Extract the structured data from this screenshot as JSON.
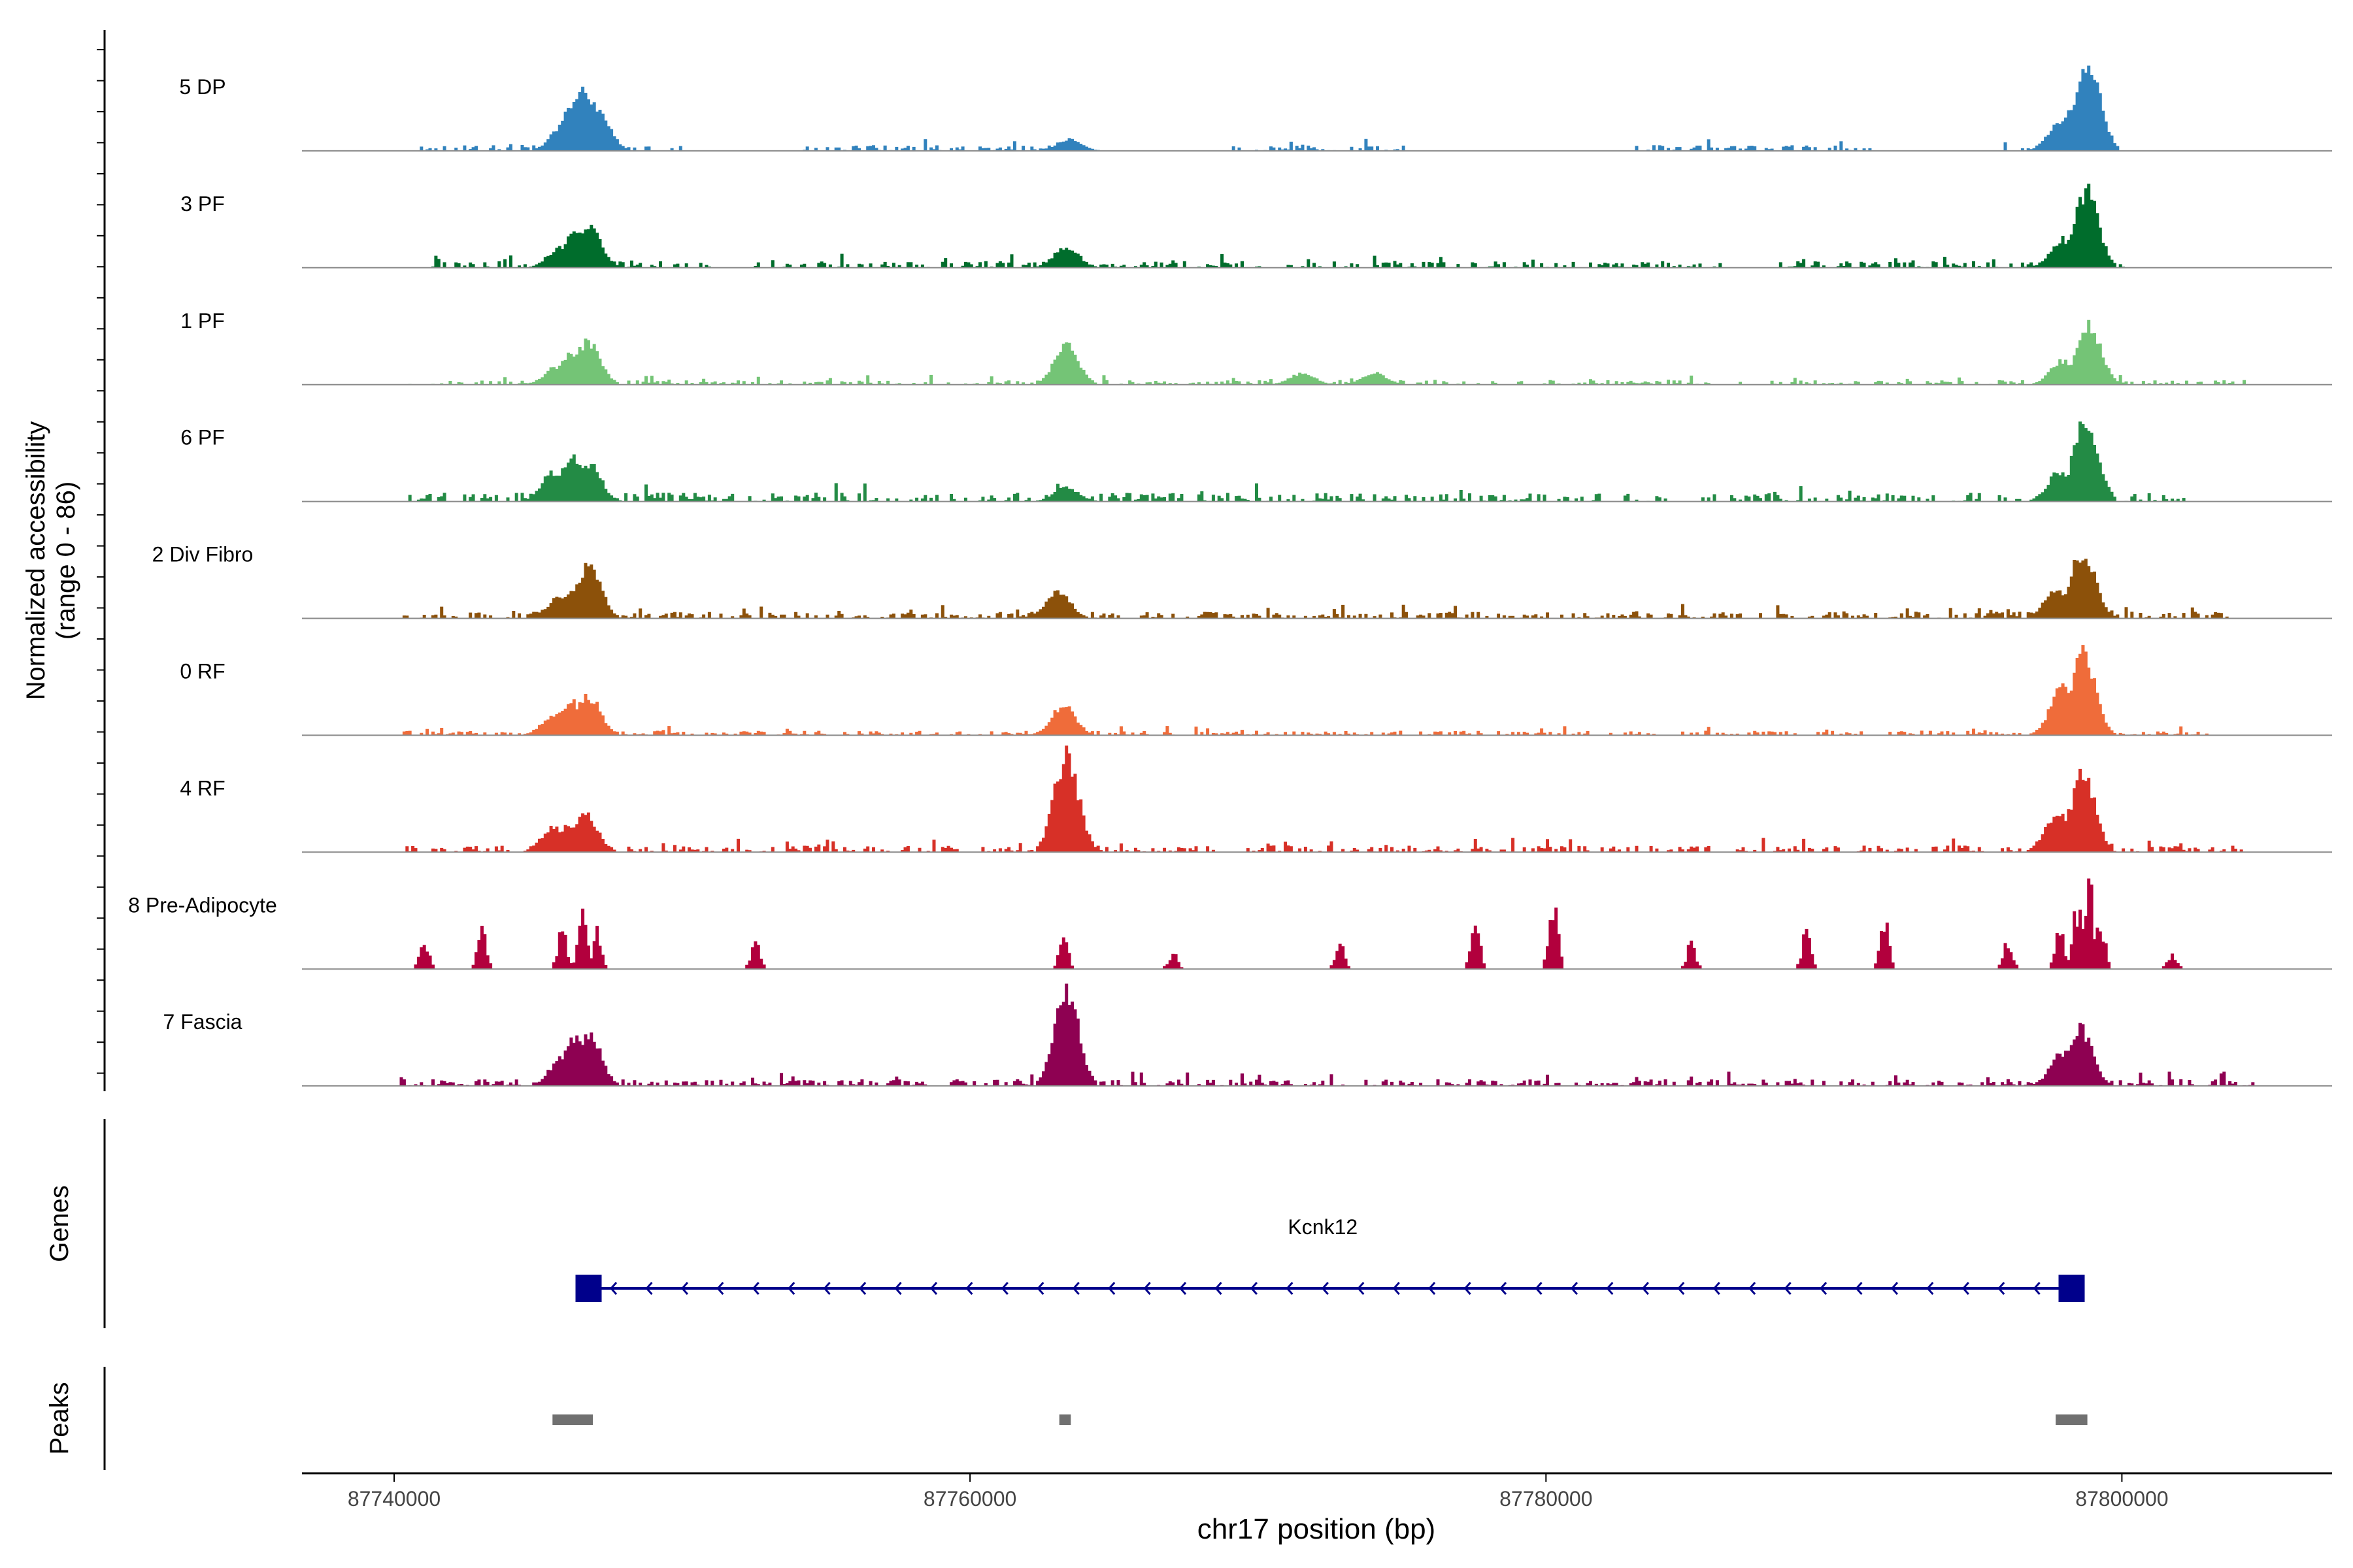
{
  "chart_data": {
    "type": "area",
    "title": "",
    "xlabel": "chr17 position (bp)",
    "ylabel": "Normalized accessibility (range 0 - 86)",
    "ylabel_lines": [
      "Normalized accessibility",
      "(range 0 - 86)"
    ],
    "y_range": [
      0,
      86
    ],
    "xlim": [
      87736800,
      87807300
    ],
    "x_ticks": [
      87740000,
      87760000,
      87780000,
      87800000
    ],
    "x_tick_labels": [
      "87740000",
      "87760000",
      "87780000",
      "87800000"
    ],
    "tracks": [
      {
        "name": "5 DP",
        "color": "#3182BD",
        "noise_ranges": [
          [
            87740800,
            87750000
          ],
          [
            87754200,
            87764300
          ],
          [
            87769000,
            87775000
          ],
          [
            87783000,
            87791200
          ],
          [
            87795800,
            87799500
          ]
        ],
        "noise_level": 0.05,
        "sparse": false,
        "peaks": [
          [
            87745800,
            0.25
          ],
          [
            87746200,
            0.5
          ],
          [
            87746600,
            0.62
          ],
          [
            87747000,
            0.45
          ],
          [
            87763400,
            0.12
          ],
          [
            87797800,
            0.3
          ],
          [
            87798400,
            0.55
          ],
          [
            87798800,
            0.92
          ]
        ]
      },
      {
        "name": "3 PF",
        "color": "#006D2C",
        "noise_ranges": [
          [
            87741200,
            87751000
          ],
          [
            87752500,
            87770000
          ],
          [
            87771000,
            87786000
          ],
          [
            87788000,
            87800000
          ]
        ],
        "noise_level": 0.06,
        "sparse": false,
        "peaks": [
          [
            87745700,
            0.2
          ],
          [
            87746200,
            0.36
          ],
          [
            87746700,
            0.42
          ],
          [
            87763300,
            0.22
          ],
          [
            87797900,
            0.3
          ],
          [
            87798700,
            0.8
          ]
        ]
      },
      {
        "name": "1 PF",
        "color": "#74C476",
        "noise_ranges": [
          [
            87740200,
            87804200
          ]
        ],
        "noise_level": 0.04,
        "sparse": false,
        "peaks": [
          [
            87745600,
            0.18
          ],
          [
            87746100,
            0.32
          ],
          [
            87746700,
            0.45
          ],
          [
            87763300,
            0.4
          ],
          [
            87771500,
            0.12
          ],
          [
            87774000,
            0.12
          ],
          [
            87797900,
            0.25
          ],
          [
            87798800,
            0.62
          ]
        ]
      },
      {
        "name": "6 PF",
        "color": "#238B45",
        "noise_ranges": [
          [
            87740200,
            87802200
          ]
        ],
        "noise_level": 0.08,
        "sparse": false,
        "peaks": [
          [
            87745500,
            0.3
          ],
          [
            87746100,
            0.45
          ],
          [
            87746700,
            0.4
          ],
          [
            87763300,
            0.14
          ],
          [
            87797800,
            0.3
          ],
          [
            87798700,
            0.88
          ]
        ]
      },
      {
        "name": "2 Div Fibro",
        "color": "#8C510A",
        "noise_ranges": [
          [
            87740200,
            87803700
          ]
        ],
        "noise_level": 0.06,
        "sparse": false,
        "peaks": [
          [
            87745700,
            0.22
          ],
          [
            87746200,
            0.32
          ],
          [
            87746700,
            0.55
          ],
          [
            87763000,
            0.28
          ],
          [
            87797700,
            0.3
          ],
          [
            87798600,
            0.7
          ]
        ]
      },
      {
        "name": "0 RF",
        "color": "#EF6C3A",
        "noise_ranges": [
          [
            87740200,
            87803000
          ]
        ],
        "noise_level": 0.04,
        "sparse": false,
        "peaks": [
          [
            87745500,
            0.2
          ],
          [
            87746100,
            0.35
          ],
          [
            87746700,
            0.4
          ],
          [
            87763200,
            0.3
          ],
          [
            87797900,
            0.5
          ],
          [
            87798600,
            0.85
          ]
        ]
      },
      {
        "name": "4 RF",
        "color": "#D73027",
        "noise_ranges": [
          [
            87740200,
            87804200
          ]
        ],
        "noise_level": 0.06,
        "sparse": false,
        "peaks": [
          [
            87745500,
            0.25
          ],
          [
            87746100,
            0.3
          ],
          [
            87746600,
            0.38
          ],
          [
            87763300,
            1.0
          ],
          [
            87797700,
            0.4
          ],
          [
            87798600,
            0.82
          ]
        ]
      },
      {
        "name": "8 Pre-Adipocyte",
        "color": "#B2003D",
        "noise_ranges": [
          [
            87740200,
            87803500
          ]
        ],
        "noise_level": 0.0,
        "sparse": true,
        "peaks": [
          [
            87741000,
            0.3
          ],
          [
            87743000,
            0.45
          ],
          [
            87745800,
            0.5
          ],
          [
            87746500,
            0.7
          ],
          [
            87747000,
            0.45
          ],
          [
            87752500,
            0.3
          ],
          [
            87763200,
            0.4
          ],
          [
            87767000,
            0.2
          ],
          [
            87772800,
            0.28
          ],
          [
            87777500,
            0.55
          ],
          [
            87780200,
            0.85
          ],
          [
            87785000,
            0.3
          ],
          [
            87789000,
            0.4
          ],
          [
            87791700,
            0.65
          ],
          [
            87796000,
            0.3
          ],
          [
            87797800,
            0.45
          ],
          [
            87798400,
            0.7
          ],
          [
            87798800,
            1.0
          ],
          [
            87799200,
            0.6
          ],
          [
            87801700,
            0.2
          ]
        ]
      },
      {
        "name": "7 Fascia",
        "color": "#8E0152",
        "noise_ranges": [
          [
            87740200,
            87804500
          ]
        ],
        "noise_level": 0.06,
        "sparse": false,
        "peaks": [
          [
            87745800,
            0.3
          ],
          [
            87746200,
            0.5
          ],
          [
            87746700,
            0.55
          ],
          [
            87763300,
            1.0
          ],
          [
            87797900,
            0.35
          ],
          [
            87798500,
            0.6
          ]
        ]
      }
    ],
    "genes_label": "Genes",
    "gene": {
      "name": "Kcnk12",
      "start": 87746300,
      "end": 87798200,
      "strand": "-",
      "exon_starts": [
        87746300,
        87797800
      ],
      "exon_ends": [
        87746800,
        87798200
      ],
      "color": "#00008B"
    },
    "peaks_label": "Peaks",
    "peak_regions": [
      [
        87745500,
        87746900
      ],
      [
        87763100,
        87763500
      ],
      [
        87797700,
        87798800
      ]
    ],
    "peak_color": "#707070"
  }
}
